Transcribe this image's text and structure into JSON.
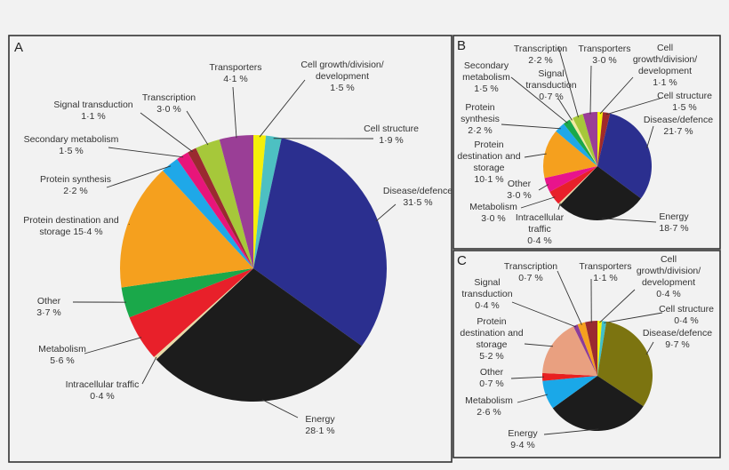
{
  "chart_data": [
    {
      "type": "pie",
      "panel_label": "A",
      "start": "12 o'clock, clockwise",
      "slices": [
        {
          "lines": [
            "Cell growth/division/",
            "development"
          ],
          "value": 1.5,
          "value_text": "1·5 %",
          "color": "#f5ef0a"
        },
        {
          "lines": [
            "Cell structure"
          ],
          "value": 1.9,
          "value_text": "1·9 %",
          "color": "#4dc0c2"
        },
        {
          "lines": [
            "Disease/defence"
          ],
          "value": 31.5,
          "value_text": "31·5 %",
          "color": "#2b2f8f"
        },
        {
          "lines": [
            "Energy"
          ],
          "value": 28.1,
          "value_text": "28·1 %",
          "color": "#1c1c1c"
        },
        {
          "lines": [
            "Intracellular traffic"
          ],
          "value": 0.4,
          "value_text": "0·4 %",
          "color": "#e8dba8"
        },
        {
          "lines": [
            "Metabolism"
          ],
          "value": 5.6,
          "value_text": "5·6 %",
          "color": "#e8202a"
        },
        {
          "lines": [
            "Other"
          ],
          "value": 3.7,
          "value_text": "3·7 %",
          "color": "#1aa84a"
        },
        {
          "lines": [
            "Protein destination and",
            "storage"
          ],
          "value": 15.4,
          "value_text": "15·4 %",
          "color": "#f5a01e",
          "inline_value": true
        },
        {
          "lines": [
            "Protein synthesis"
          ],
          "value": 2.2,
          "value_text": "2·2 %",
          "color": "#1fa8e8"
        },
        {
          "lines": [
            "Secondary metabolism"
          ],
          "value": 1.5,
          "value_text": "1·5 %",
          "color": "#e8157a"
        },
        {
          "lines": [
            "Signal transduction"
          ],
          "value": 1.1,
          "value_text": "1·1 %",
          "color": "#9a2a30"
        },
        {
          "lines": [
            "Transcription"
          ],
          "value": 3.0,
          "value_text": "3·0 %",
          "color": "#a6c83a"
        },
        {
          "lines": [
            "Transporters"
          ],
          "value": 4.1,
          "value_text": "4·1 %",
          "color": "#9a3e96"
        }
      ]
    },
    {
      "type": "pie",
      "panel_label": "B",
      "start": "12 o'clock, clockwise",
      "slices": [
        {
          "lines": [
            "Cell",
            "growth/division/",
            "development"
          ],
          "value": 1.1,
          "value_text": "1·1 %",
          "color": "#f5ef0a"
        },
        {
          "lines": [
            "Cell structure"
          ],
          "value": 1.5,
          "value_text": "1·5 %",
          "color": "#a02a2a"
        },
        {
          "lines": [
            "Disease/defence"
          ],
          "value": 21.7,
          "value_text": "21·7 %",
          "color": "#2b2f8f"
        },
        {
          "lines": [
            "Energy"
          ],
          "value": 18.7,
          "value_text": "18·7 %",
          "color": "#1c1c1c"
        },
        {
          "lines": [
            "Intracellular",
            "traffic"
          ],
          "value": 0.4,
          "value_text": "0·4 %",
          "color": "#e8dba8"
        },
        {
          "lines": [
            "Metabolism"
          ],
          "value": 3.0,
          "value_text": "3·0 %",
          "color": "#e8202a"
        },
        {
          "lines": [
            "Other"
          ],
          "value": 3.0,
          "value_text": "3·0 %",
          "color": "#e8148c"
        },
        {
          "lines": [
            "Protein",
            "destination and",
            "storage"
          ],
          "value": 10.1,
          "value_text": "10·1 %",
          "color": "#f5a01e"
        },
        {
          "lines": [
            "Protein",
            "synthesis"
          ],
          "value": 2.2,
          "value_text": "2·2 %",
          "color": "#1fa8e8"
        },
        {
          "lines": [
            "Secondary",
            "metabolism"
          ],
          "value": 1.5,
          "value_text": "1·5 %",
          "color": "#1aa84a"
        },
        {
          "lines": [
            "Signal",
            "transduction"
          ],
          "value": 0.7,
          "value_text": "0·7 %",
          "color": "#f0eaa0"
        },
        {
          "lines": [
            "Transcription"
          ],
          "value": 2.2,
          "value_text": "2·2 %",
          "color": "#a6c83a"
        },
        {
          "lines": [
            "Transporters"
          ],
          "value": 3.0,
          "value_text": "3·0 %",
          "color": "#9a3e96"
        }
      ]
    },
    {
      "type": "pie",
      "panel_label": "C",
      "start": "12 o'clock, clockwise",
      "slices": [
        {
          "lines": [
            "Cell",
            "growth/division/",
            "development"
          ],
          "value": 0.4,
          "value_text": "0·4 %",
          "color": "#f5ef0a"
        },
        {
          "lines": [
            "Cell structure"
          ],
          "value": 0.4,
          "value_text": "0·4 %",
          "color": "#40c0c8"
        },
        {
          "lines": [
            "Disease/defence"
          ],
          "value": 9.7,
          "value_text": "9·7 %",
          "color": "#7c7410"
        },
        {
          "lines": [
            "Energy"
          ],
          "value": 9.4,
          "value_text": "9·4 %",
          "color": "#1c1c1c"
        },
        {
          "lines": [
            "Metabolism"
          ],
          "value": 2.6,
          "value_text": "2·6 %",
          "color": "#1aa8e8"
        },
        {
          "lines": [
            "Other"
          ],
          "value": 0.7,
          "value_text": "0·7 %",
          "color": "#e82020"
        },
        {
          "lines": [
            "Protein",
            "destination and",
            "storage"
          ],
          "value": 5.2,
          "value_text": "5·2 %",
          "color": "#e9a080"
        },
        {
          "lines": [
            "Signal",
            "transduction"
          ],
          "value": 0.4,
          "value_text": "0·4 %",
          "color": "#8c3c9a"
        },
        {
          "lines": [
            "Transcription"
          ],
          "value": 0.7,
          "value_text": "0·7 %",
          "color": "#f5a01e"
        },
        {
          "lines": [
            "Transporters"
          ],
          "value": 1.1,
          "value_text": "1·1 %",
          "color": "#9a2a30"
        }
      ]
    }
  ]
}
